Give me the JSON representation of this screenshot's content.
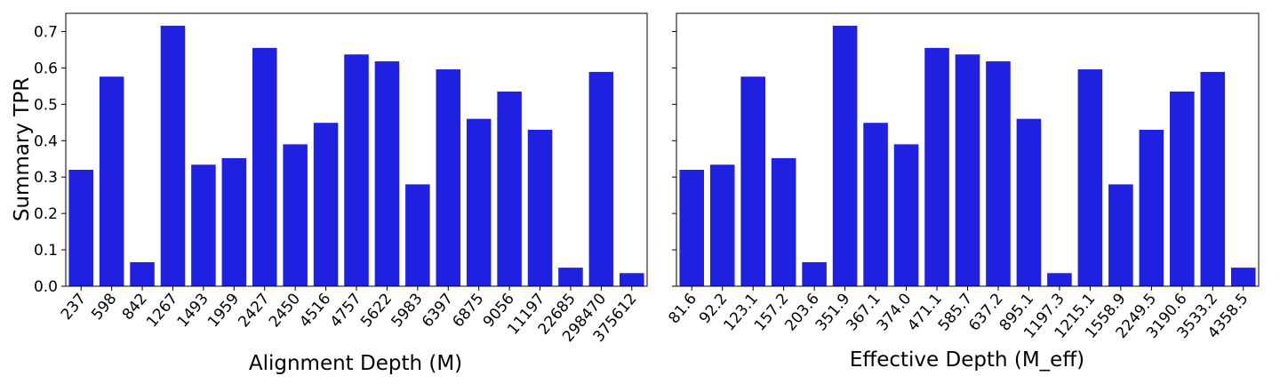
{
  "chart_data": [
    {
      "type": "bar",
      "xlabel": "Alignment Depth (M)",
      "ylabel": "Summary TPR",
      "ylim": [
        0,
        0.75
      ],
      "yticks": [
        "0.0",
        "0.1",
        "0.2",
        "0.3",
        "0.4",
        "0.5",
        "0.6",
        "0.7"
      ],
      "categories": [
        "237",
        "598",
        "842",
        "1267",
        "1493",
        "1959",
        "2427",
        "2450",
        "4516",
        "4757",
        "5622",
        "5983",
        "6397",
        "6875",
        "9056",
        "11197",
        "22685",
        "298470",
        "375612"
      ],
      "values": [
        0.32,
        0.576,
        0.066,
        0.716,
        0.334,
        0.352,
        0.655,
        0.39,
        0.449,
        0.637,
        0.618,
        0.28,
        0.596,
        0.46,
        0.535,
        0.43,
        0.051,
        0.589,
        0.036
      ],
      "bar_color": "#2020e0",
      "grid": false
    },
    {
      "type": "bar",
      "xlabel": "Effective Depth (M_eff)",
      "ylabel": "",
      "ylim": [
        0,
        0.75
      ],
      "categories": [
        "81.6",
        "92.2",
        "123.1",
        "157.2",
        "203.6",
        "351.9",
        "367.1",
        "374.0",
        "471.1",
        "585.7",
        "637.2",
        "895.1",
        "1197.3",
        "1215.1",
        "1558.9",
        "2249.5",
        "3190.6",
        "3533.2",
        "4358.5"
      ],
      "values": [
        0.32,
        0.334,
        0.576,
        0.352,
        0.066,
        0.716,
        0.449,
        0.39,
        0.655,
        0.637,
        0.618,
        0.46,
        0.036,
        0.596,
        0.28,
        0.43,
        0.535,
        0.589,
        0.051
      ],
      "bar_color": "#2020e0",
      "grid": false
    }
  ]
}
